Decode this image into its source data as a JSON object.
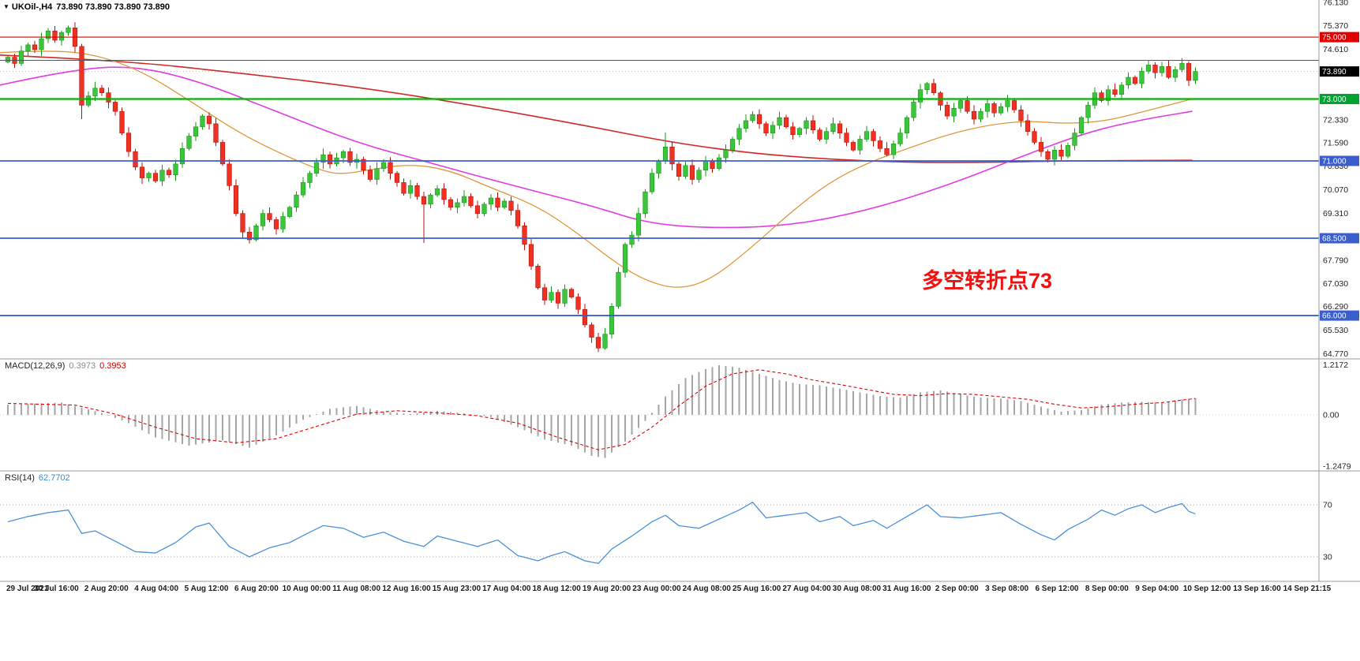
{
  "header": {
    "symbol_title": "UKOil-,H4",
    "ohlc": "73.890 73.890 73.890 73.890"
  },
  "macd_header": {
    "label": "MACD(12,26,9)",
    "value_main": "0.3973",
    "value_signal": "0.3953"
  },
  "rsi_header": {
    "label": "RSI(14)",
    "value": "62.7702"
  },
  "annotation": {
    "text": "多空转折点73",
    "color": "#f01010"
  },
  "chart_data": {
    "type": "candlestick",
    "symbol": "UKOil-",
    "timeframe": "H4",
    "last_price": 73.89,
    "price_axis": {
      "ticks": [
        {
          "text": "76.130",
          "value": 76.13
        },
        {
          "text": "75.370",
          "value": 75.37
        },
        {
          "text": "74.610",
          "value": 74.61
        },
        {
          "text": "72.330",
          "value": 72.33
        },
        {
          "text": "71.590",
          "value": 71.59
        },
        {
          "text": "70.830",
          "value": 70.83
        },
        {
          "text": "70.070",
          "value": 70.07
        },
        {
          "text": "69.310",
          "value": 69.31
        },
        {
          "text": "67.790",
          "value": 67.79
        },
        {
          "text": "67.030",
          "value": 67.03
        },
        {
          "text": "66.290",
          "value": 66.29
        },
        {
          "text": "65.530",
          "value": 65.53
        },
        {
          "text": "64.770",
          "value": 64.77
        }
      ],
      "badges": [
        {
          "text": "75.000",
          "value": 75.0,
          "color": "#e00000"
        },
        {
          "text": "73.890",
          "value": 73.89,
          "color": "#000000"
        },
        {
          "text": "73.000",
          "value": 73.0,
          "color": "#00a331"
        },
        {
          "text": "71.000",
          "value": 71.0,
          "color": "#3a5fcd"
        },
        {
          "text": "68.500",
          "value": 68.5,
          "color": "#3a5fcd"
        },
        {
          "text": "66.000",
          "value": 66.0,
          "color": "#3a5fcd"
        }
      ]
    },
    "hlines": [
      {
        "price": 75.0,
        "color": "#dd0000",
        "width": 1.2
      },
      {
        "price": 74.25,
        "color": "#555555",
        "width": 1
      },
      {
        "price": 73.0,
        "color": "#00b400",
        "width": 2.2
      },
      {
        "price": 71.0,
        "color": "#3a5fcd",
        "width": 1.8
      },
      {
        "price": 68.5,
        "color": "#3a5fcd",
        "width": 1.8
      },
      {
        "price": 66.0,
        "color": "#3a5fcd",
        "width": 1.8
      }
    ],
    "time_axis": [
      "29 Jul 2021",
      "30 Jul 16:00",
      "2 Aug 20:00",
      "4 Aug 04:00",
      "5 Aug 12:00",
      "6 Aug 20:00",
      "10 Aug 00:00",
      "11 Aug 08:00",
      "12 Aug 16:00",
      "15 Aug 23:00",
      "17 Aug 04:00",
      "18 Aug 12:00",
      "19 Aug 20:00",
      "23 Aug 00:00",
      "24 Aug 08:00",
      "25 Aug 16:00",
      "27 Aug 04:00",
      "30 Aug 08:00",
      "31 Aug 16:00",
      "2 Sep 00:00",
      "3 Sep 08:00",
      "6 Sep 12:00",
      "8 Sep 00:00",
      "9 Sep 04:00",
      "10 Sep 12:00",
      "13 Sep 16:00",
      "14 Sep 21:15"
    ],
    "candles": {
      "first_open": 74.2,
      "up_color": "#3cc43c",
      "up_border": "#159915",
      "down_color": "#f03022",
      "down_border": "#bb1208",
      "closes": [
        74.35,
        74.15,
        74.55,
        74.75,
        74.6,
        74.95,
        75.2,
        74.9,
        75.15,
        75.3,
        74.7,
        72.8,
        73.1,
        73.35,
        73.2,
        72.9,
        72.6,
        71.9,
        71.3,
        70.8,
        70.45,
        70.6,
        70.35,
        70.7,
        70.55,
        70.9,
        71.4,
        71.8,
        72.1,
        72.45,
        72.2,
        71.6,
        70.9,
        70.2,
        69.3,
        68.7,
        68.45,
        68.9,
        69.3,
        69.1,
        68.8,
        69.2,
        69.5,
        69.9,
        70.3,
        70.6,
        70.95,
        71.2,
        70.9,
        71.1,
        71.3,
        70.95,
        71.05,
        70.7,
        70.4,
        70.75,
        70.95,
        70.6,
        70.3,
        69.95,
        70.2,
        69.85,
        69.6,
        69.9,
        70.1,
        69.75,
        69.5,
        69.65,
        69.85,
        69.55,
        69.3,
        69.6,
        69.8,
        69.5,
        69.7,
        69.4,
        68.9,
        68.3,
        67.6,
        66.9,
        66.5,
        66.75,
        66.4,
        66.85,
        66.6,
        66.2,
        65.7,
        65.3,
        64.95,
        65.4,
        66.3,
        67.4,
        68.3,
        68.6,
        69.3,
        70.0,
        70.6,
        71.0,
        71.45,
        70.9,
        70.5,
        70.85,
        70.4,
        70.7,
        71.0,
        70.75,
        71.1,
        71.35,
        71.7,
        72.05,
        72.3,
        72.5,
        72.2,
        71.9,
        72.15,
        72.4,
        72.1,
        71.85,
        72.05,
        72.3,
        72.0,
        71.7,
        71.95,
        72.2,
        71.9,
        71.6,
        71.35,
        71.7,
        71.95,
        71.65,
        71.4,
        71.2,
        71.55,
        71.9,
        72.4,
        72.9,
        73.3,
        73.5,
        73.2,
        72.8,
        72.45,
        72.7,
        72.95,
        72.6,
        72.35,
        72.6,
        72.85,
        72.55,
        72.75,
        72.95,
        72.65,
        72.3,
        71.95,
        71.6,
        71.3,
        71.05,
        71.35,
        71.15,
        71.5,
        71.9,
        72.4,
        72.8,
        73.2,
        72.95,
        73.3,
        73.15,
        73.45,
        73.7,
        73.5,
        73.9,
        74.1,
        73.85,
        74.05,
        73.7,
        73.95,
        74.15,
        73.6,
        73.89
      ],
      "wick_overrides": {
        "9": {
          "high": 75.37
        },
        "11": {
          "low": 72.35
        },
        "62": {
          "low": 68.35
        },
        "88": {
          "low": 64.82
        },
        "98": {
          "high": 71.92
        },
        "137": {
          "high": 73.55
        },
        "170": {
          "high": 74.25
        }
      }
    },
    "ma_lines": [
      {
        "name": "ma-slow-red-line",
        "color": "#d02828",
        "width": 1.6,
        "points": [
          [
            0,
            74.42
          ],
          [
            150,
            74.25
          ],
          [
            300,
            73.85
          ],
          [
            450,
            73.4
          ],
          [
            600,
            72.8
          ],
          [
            750,
            72.1
          ],
          [
            850,
            71.6
          ],
          [
            950,
            71.25
          ],
          [
            1050,
            71.05
          ],
          [
            1150,
            70.95
          ],
          [
            1250,
            70.95
          ],
          [
            1350,
            71.0
          ],
          [
            1510,
            71.02
          ]
        ]
      },
      {
        "name": "ma-medium-magenta-line",
        "color": "#e13ce1",
        "width": 1.6,
        "points": [
          [
            0,
            73.45
          ],
          [
            80,
            73.9
          ],
          [
            165,
            74.1
          ],
          [
            250,
            73.6
          ],
          [
            350,
            72.6
          ],
          [
            450,
            71.6
          ],
          [
            550,
            70.9
          ],
          [
            650,
            70.2
          ],
          [
            750,
            69.55
          ],
          [
            820,
            68.98
          ],
          [
            900,
            68.82
          ],
          [
            1000,
            68.9
          ],
          [
            1100,
            69.4
          ],
          [
            1200,
            70.2
          ],
          [
            1300,
            71.2
          ],
          [
            1380,
            71.95
          ],
          [
            1450,
            72.35
          ],
          [
            1510,
            72.6
          ]
        ]
      },
      {
        "name": "ma-fast-orange-line",
        "color": "#e0973a",
        "width": 1.3,
        "points": [
          [
            0,
            74.5
          ],
          [
            60,
            74.58
          ],
          [
            120,
            74.45
          ],
          [
            180,
            73.9
          ],
          [
            240,
            72.95
          ],
          [
            300,
            71.95
          ],
          [
            350,
            71.3
          ],
          [
            400,
            70.75
          ],
          [
            430,
            70.55
          ],
          [
            470,
            70.72
          ],
          [
            520,
            70.9
          ],
          [
            570,
            70.7
          ],
          [
            620,
            70.15
          ],
          [
            680,
            69.55
          ],
          [
            730,
            68.7
          ],
          [
            780,
            67.7
          ],
          [
            820,
            67.1
          ],
          [
            860,
            66.85
          ],
          [
            900,
            67.15
          ],
          [
            950,
            68.15
          ],
          [
            1000,
            69.3
          ],
          [
            1050,
            70.3
          ],
          [
            1100,
            70.95
          ],
          [
            1150,
            71.4
          ],
          [
            1200,
            71.85
          ],
          [
            1250,
            72.15
          ],
          [
            1300,
            72.3
          ],
          [
            1350,
            72.2
          ],
          [
            1400,
            72.28
          ],
          [
            1450,
            72.6
          ],
          [
            1510,
            73.0
          ]
        ]
      }
    ],
    "macd": {
      "hist_color": "#a6a6a6",
      "signal_color": "#e00000",
      "axis_labels": [
        {
          "text": "1.2172",
          "value": 1.2172
        },
        {
          "text": "0.00",
          "value": 0
        },
        {
          "text": "-1.2479",
          "value": -1.2479
        }
      ],
      "hist_anchors": [
        [
          0,
          0.25
        ],
        [
          8,
          0.3
        ],
        [
          14,
          0.05
        ],
        [
          18,
          -0.2
        ],
        [
          22,
          -0.55
        ],
        [
          27,
          -0.75
        ],
        [
          32,
          -0.62
        ],
        [
          36,
          -0.8
        ],
        [
          40,
          -0.5
        ],
        [
          44,
          -0.12
        ],
        [
          48,
          0.15
        ],
        [
          52,
          0.22
        ],
        [
          56,
          0.08
        ],
        [
          60,
          0.02
        ],
        [
          64,
          0.1
        ],
        [
          68,
          0.04
        ],
        [
          72,
          -0.05
        ],
        [
          76,
          -0.3
        ],
        [
          80,
          -0.6
        ],
        [
          84,
          -0.75
        ],
        [
          87,
          -1.0
        ],
        [
          89,
          -1.05
        ],
        [
          92,
          -0.65
        ],
        [
          95,
          -0.15
        ],
        [
          98,
          0.45
        ],
        [
          101,
          0.9
        ],
        [
          104,
          1.12
        ],
        [
          106,
          1.21
        ],
        [
          109,
          1.15
        ],
        [
          112,
          1.0
        ],
        [
          115,
          0.85
        ],
        [
          118,
          0.75
        ],
        [
          121,
          0.72
        ],
        [
          124,
          0.64
        ],
        [
          127,
          0.55
        ],
        [
          130,
          0.46
        ],
        [
          133,
          0.42
        ],
        [
          136,
          0.55
        ],
        [
          139,
          0.6
        ],
        [
          142,
          0.5
        ],
        [
          145,
          0.42
        ],
        [
          148,
          0.4
        ],
        [
          151,
          0.34
        ],
        [
          154,
          0.2
        ],
        [
          157,
          0.08
        ],
        [
          160,
          0.12
        ],
        [
          163,
          0.25
        ],
        [
          166,
          0.3
        ],
        [
          169,
          0.32
        ],
        [
          172,
          0.3
        ],
        [
          175,
          0.38
        ],
        [
          177,
          0.4
        ]
      ],
      "signal_anchors": [
        [
          0,
          0.28
        ],
        [
          10,
          0.24
        ],
        [
          16,
          0.02
        ],
        [
          22,
          -0.3
        ],
        [
          28,
          -0.58
        ],
        [
          34,
          -0.68
        ],
        [
          40,
          -0.58
        ],
        [
          46,
          -0.28
        ],
        [
          52,
          0.02
        ],
        [
          58,
          0.1
        ],
        [
          64,
          0.05
        ],
        [
          70,
          -0.02
        ],
        [
          76,
          -0.2
        ],
        [
          82,
          -0.55
        ],
        [
          88,
          -0.85
        ],
        [
          92,
          -0.72
        ],
        [
          96,
          -0.3
        ],
        [
          100,
          0.22
        ],
        [
          104,
          0.7
        ],
        [
          108,
          1.0
        ],
        [
          112,
          1.1
        ],
        [
          116,
          1.0
        ],
        [
          120,
          0.85
        ],
        [
          124,
          0.74
        ],
        [
          128,
          0.62
        ],
        [
          132,
          0.5
        ],
        [
          136,
          0.47
        ],
        [
          140,
          0.52
        ],
        [
          144,
          0.5
        ],
        [
          148,
          0.44
        ],
        [
          152,
          0.38
        ],
        [
          156,
          0.26
        ],
        [
          160,
          0.17
        ],
        [
          164,
          0.2
        ],
        [
          168,
          0.26
        ],
        [
          172,
          0.3
        ],
        [
          177,
          0.4
        ]
      ]
    },
    "rsi": {
      "color": "#4a90d9",
      "levels": [
        {
          "text": "70",
          "value": 70
        },
        {
          "text": "30",
          "value": 30
        }
      ],
      "anchors": [
        [
          0,
          57
        ],
        [
          3,
          61
        ],
        [
          6,
          64
        ],
        [
          9,
          66
        ],
        [
          11,
          48
        ],
        [
          13,
          50
        ],
        [
          16,
          42
        ],
        [
          19,
          34
        ],
        [
          22,
          33
        ],
        [
          25,
          41
        ],
        [
          28,
          53
        ],
        [
          30,
          56
        ],
        [
          33,
          38
        ],
        [
          36,
          30
        ],
        [
          39,
          37
        ],
        [
          42,
          41
        ],
        [
          45,
          49
        ],
        [
          47,
          54
        ],
        [
          50,
          52
        ],
        [
          53,
          45
        ],
        [
          56,
          49
        ],
        [
          59,
          42
        ],
        [
          62,
          38
        ],
        [
          64,
          46
        ],
        [
          67,
          42
        ],
        [
          70,
          38
        ],
        [
          73,
          43
        ],
        [
          76,
          31
        ],
        [
          79,
          27
        ],
        [
          81,
          31
        ],
        [
          83,
          34
        ],
        [
          86,
          27
        ],
        [
          88,
          25
        ],
        [
          90,
          36
        ],
        [
          93,
          46
        ],
        [
          96,
          57
        ],
        [
          98,
          62
        ],
        [
          100,
          54
        ],
        [
          103,
          52
        ],
        [
          106,
          59
        ],
        [
          109,
          66
        ],
        [
          111,
          72
        ],
        [
          113,
          60
        ],
        [
          116,
          62
        ],
        [
          119,
          64
        ],
        [
          121,
          57
        ],
        [
          124,
          61
        ],
        [
          126,
          54
        ],
        [
          129,
          58
        ],
        [
          131,
          52
        ],
        [
          134,
          61
        ],
        [
          137,
          70
        ],
        [
          139,
          61
        ],
        [
          142,
          60
        ],
        [
          145,
          62
        ],
        [
          148,
          64
        ],
        [
          151,
          55
        ],
        [
          154,
          47
        ],
        [
          156,
          43
        ],
        [
          158,
          51
        ],
        [
          161,
          59
        ],
        [
          163,
          66
        ],
        [
          165,
          62
        ],
        [
          167,
          67
        ],
        [
          169,
          70
        ],
        [
          171,
          64
        ],
        [
          173,
          68
        ],
        [
          175,
          71
        ],
        [
          176,
          65
        ],
        [
          177,
          63
        ]
      ]
    }
  }
}
